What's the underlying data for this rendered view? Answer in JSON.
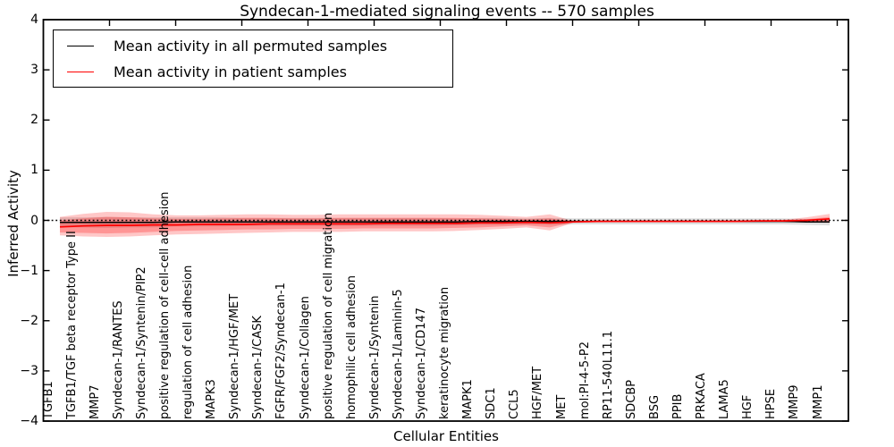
{
  "chart_data": {
    "type": "line",
    "title": "Syndecan-1-mediated signaling events -- 570 samples",
    "xlabel": "Cellular Entities",
    "ylabel": "Inferred Activity",
    "ylim": [
      -4,
      4
    ],
    "ytick_values": [
      4,
      3,
      2,
      1,
      0,
      -1,
      -2,
      -3,
      -4
    ],
    "ytick_labels": [
      "4",
      "3",
      "2",
      "1",
      "0",
      "−1",
      "−2",
      "−3",
      "−4"
    ],
    "grid": false,
    "legend_position": "upper left",
    "categories": [
      "TGFB1",
      "TGFB1/TGF beta receptor Type II",
      "MMP7",
      "Syndecan-1/RANTES",
      "Syndecan-1/Syntenin/PIP2",
      "positive regulation of cell-cell adhesion",
      "regulation of cell adhesion",
      "MAPK3",
      "Syndecan-1/HGF/MET",
      "Syndecan-1/CASK",
      "FGFR/FGF2/Syndecan-1",
      "Syndecan-1/Collagen",
      "positive regulation of cell migration",
      "homophilic cell adhesion",
      "Syndecan-1/Syntenin",
      "Syndecan-1/Laminin-5",
      "Syndecan-1/CD147",
      "keratinocyte migration",
      "MAPK1",
      "SDC1",
      "CCL5",
      "HGF/MET",
      "MET",
      "mol:PI-4-5-P2",
      "RP11-540L11.1",
      "SDCBP",
      "BSG",
      "PPIB",
      "PRKACA",
      "LAMA5",
      "HGF",
      "HPSE",
      "MMP9",
      "MMP1"
    ],
    "series": [
      {
        "name": "Mean activity in all permuted samples",
        "color": "#000000",
        "values": [
          -0.04,
          -0.04,
          -0.04,
          -0.04,
          -0.04,
          -0.03,
          -0.03,
          -0.03,
          -0.03,
          -0.03,
          -0.03,
          -0.03,
          -0.03,
          -0.03,
          -0.03,
          -0.03,
          -0.03,
          -0.03,
          -0.02,
          -0.02,
          -0.02,
          -0.02,
          -0.02,
          -0.02,
          -0.02,
          -0.02,
          -0.02,
          -0.02,
          -0.02,
          -0.02,
          -0.02,
          -0.02,
          -0.03,
          -0.03
        ]
      },
      {
        "name": "Mean activity in patient samples",
        "color": "#ff0000",
        "values": [
          -0.13,
          -0.11,
          -0.1,
          -0.1,
          -0.09,
          -0.09,
          -0.08,
          -0.08,
          -0.08,
          -0.07,
          -0.07,
          -0.07,
          -0.07,
          -0.07,
          -0.06,
          -0.06,
          -0.06,
          -0.06,
          -0.05,
          -0.05,
          -0.04,
          -0.05,
          -0.03,
          -0.02,
          -0.02,
          -0.02,
          -0.02,
          -0.02,
          -0.02,
          -0.02,
          -0.01,
          -0.01,
          0.0,
          0.03
        ]
      }
    ],
    "bands": {
      "patient_outer": {
        "color": "#ff0000",
        "opacity": 0.22,
        "upper": [
          0.07,
          0.13,
          0.17,
          0.16,
          0.12,
          0.1,
          0.1,
          0.11,
          0.12,
          0.12,
          0.11,
          0.11,
          0.12,
          0.12,
          0.12,
          0.12,
          0.12,
          0.12,
          0.11,
          0.09,
          0.07,
          0.12,
          -0.01,
          -0.01,
          -0.01,
          -0.01,
          -0.01,
          -0.01,
          -0.01,
          -0.01,
          0.0,
          0.01,
          0.06,
          0.13
        ],
        "lower": [
          -0.3,
          -0.32,
          -0.33,
          -0.32,
          -0.3,
          -0.28,
          -0.27,
          -0.26,
          -0.25,
          -0.24,
          -0.23,
          -0.23,
          -0.23,
          -0.22,
          -0.22,
          -0.22,
          -0.22,
          -0.21,
          -0.19,
          -0.17,
          -0.14,
          -0.2,
          -0.05,
          -0.04,
          -0.03,
          -0.03,
          -0.03,
          -0.03,
          -0.03,
          -0.03,
          -0.03,
          -0.03,
          -0.04,
          -0.05
        ]
      },
      "patient_inner": {
        "color": "#ff0000",
        "opacity": 0.25,
        "upper": [
          0.0,
          0.04,
          0.07,
          0.06,
          0.04,
          0.03,
          0.03,
          0.04,
          0.05,
          0.05,
          0.04,
          0.04,
          0.05,
          0.05,
          0.05,
          0.05,
          0.05,
          0.05,
          0.04,
          0.03,
          0.02,
          0.04,
          -0.02,
          -0.01,
          -0.01,
          -0.01,
          -0.01,
          -0.01,
          -0.01,
          -0.01,
          -0.01,
          0.0,
          0.02,
          0.07
        ],
        "lower": [
          -0.24,
          -0.25,
          -0.26,
          -0.25,
          -0.23,
          -0.21,
          -0.2,
          -0.19,
          -0.18,
          -0.18,
          -0.17,
          -0.17,
          -0.17,
          -0.16,
          -0.16,
          -0.16,
          -0.16,
          -0.15,
          -0.14,
          -0.12,
          -0.1,
          -0.14,
          -0.04,
          -0.03,
          -0.02,
          -0.02,
          -0.02,
          -0.02,
          -0.02,
          -0.02,
          -0.02,
          -0.02,
          -0.03,
          -0.03
        ]
      },
      "permuted": {
        "color": "#000000",
        "opacity": 0.13,
        "halfwidth": [
          0.1,
          0.1,
          0.11,
          0.1,
          0.1,
          0.09,
          0.09,
          0.09,
          0.08,
          0.08,
          0.08,
          0.08,
          0.08,
          0.08,
          0.08,
          0.08,
          0.08,
          0.07,
          0.07,
          0.07,
          0.06,
          0.07,
          0.06,
          0.06,
          0.06,
          0.06,
          0.06,
          0.06,
          0.06,
          0.06,
          0.06,
          0.06,
          0.06,
          0.07
        ]
      }
    },
    "zero_line": {
      "y": 0,
      "style": "dotted",
      "color": "#000000"
    }
  },
  "legend": {
    "items": [
      {
        "label": "Mean activity in all permuted samples",
        "color": "#000000"
      },
      {
        "label": "Mean activity in patient samples",
        "color": "#ff0000"
      }
    ]
  }
}
